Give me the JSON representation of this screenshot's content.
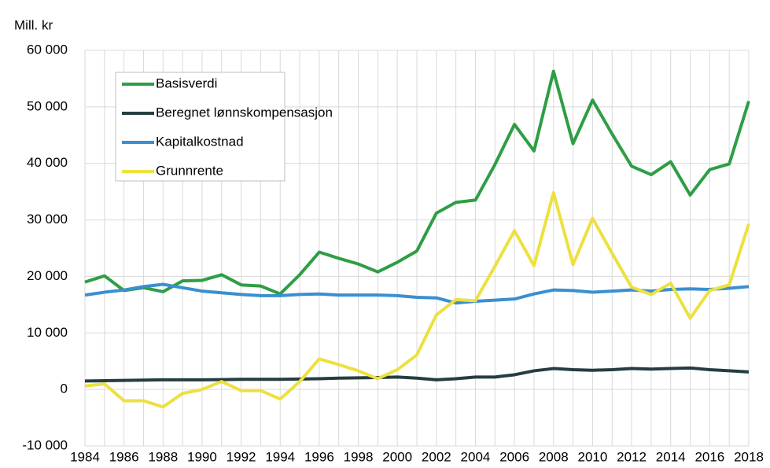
{
  "chart_data": {
    "type": "line",
    "y_label": "Mill. kr",
    "x": [
      1984,
      1985,
      1986,
      1987,
      1988,
      1989,
      1990,
      1991,
      1992,
      1993,
      1994,
      1995,
      1996,
      1997,
      1998,
      1999,
      2000,
      2001,
      2002,
      2003,
      2004,
      2005,
      2006,
      2007,
      2008,
      2009,
      2010,
      2011,
      2012,
      2013,
      2014,
      2015,
      2016,
      2017,
      2018
    ],
    "xlim": [
      1984,
      2018
    ],
    "xticks": [
      1984,
      1986,
      1988,
      1990,
      1992,
      1994,
      1996,
      1998,
      2000,
      2002,
      2004,
      2006,
      2008,
      2010,
      2012,
      2014,
      2016,
      2018
    ],
    "ylim": [
      -10000,
      60000
    ],
    "yticks": [
      {
        "value": -10000,
        "label": "-10 000"
      },
      0,
      {
        "value": 10000,
        "label": "10 000"
      },
      {
        "value": 20000,
        "label": "20 000"
      },
      {
        "value": 30000,
        "label": "30 000"
      },
      {
        "value": 40000,
        "label": "40 000"
      },
      {
        "value": 50000,
        "label": "50 000"
      },
      {
        "value": 60000,
        "label": "60 000"
      }
    ],
    "grid": true,
    "legend": "upper left",
    "series": [
      {
        "name": "Basisverdi",
        "color": "#2e9e44",
        "values": [
          19000,
          20100,
          17500,
          18000,
          17300,
          19200,
          19300,
          20300,
          18500,
          18300,
          16900,
          20300,
          24300,
          23200,
          22200,
          20800,
          22500,
          24500,
          31200,
          33100,
          33500,
          39800,
          46900,
          42200,
          56300,
          43500,
          51200,
          45200,
          39500,
          38000,
          40300,
          34400,
          38900,
          39900,
          51000
        ]
      },
      {
        "name": "Beregnet lønnskompensasjon",
        "color": "#253d40",
        "values": [
          1500,
          1550,
          1600,
          1650,
          1700,
          1700,
          1700,
          1750,
          1800,
          1800,
          1800,
          1850,
          1900,
          2000,
          2050,
          2100,
          2200,
          2000,
          1700,
          1900,
          2200,
          2200,
          2600,
          3300,
          3700,
          3500,
          3400,
          3500,
          3700,
          3600,
          3700,
          3800,
          3500,
          3300,
          3100
        ]
      },
      {
        "name": "Kapitalkostnad",
        "color": "#3a8fd0",
        "values": [
          16700,
          17200,
          17600,
          18200,
          18600,
          18000,
          17400,
          17100,
          16800,
          16600,
          16600,
          16800,
          16900,
          16700,
          16700,
          16700,
          16600,
          16300,
          16200,
          15300,
          15600,
          15800,
          16000,
          16900,
          17600,
          17500,
          17200,
          17400,
          17600,
          17400,
          17700,
          17800,
          17700,
          17900,
          18200
        ]
      },
      {
        "name": "Grunnrente",
        "color": "#ede040",
        "values": [
          600,
          1000,
          -2000,
          -2000,
          -3100,
          -700,
          0,
          1400,
          -200,
          -200,
          -1700,
          1400,
          5400,
          4400,
          3300,
          1900,
          3500,
          6100,
          13200,
          15900,
          15700,
          21800,
          28100,
          21900,
          34800,
          22100,
          30300,
          24100,
          18100,
          16800,
          18800,
          12600,
          17500,
          18500,
          29300
        ]
      }
    ]
  }
}
